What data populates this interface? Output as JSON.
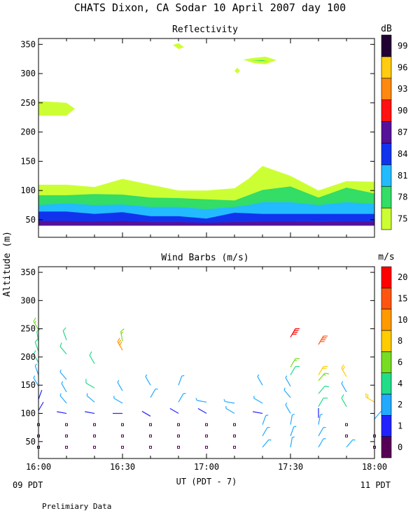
{
  "title": "CHATS Dixon, CA  Sodar  10 April 2007  day 100",
  "footer_note": "Prelimiary Data",
  "shared_y_label": "Altitude (m)",
  "x_axis": {
    "label": "UT  (PDT - 7)",
    "start_note": "09 PDT",
    "end_note": "11 PDT",
    "ticks": [
      {
        "label": "16:00",
        "value": 0
      },
      {
        "label": "16:30",
        "value": 30
      },
      {
        "label": "17:00",
        "value": 60
      },
      {
        "label": "17:30",
        "value": 90
      },
      {
        "label": "18:00",
        "value": 120
      }
    ]
  },
  "chart_data": [
    {
      "type": "area",
      "title": "Reflectivity",
      "ylabel": "Altitude (m)",
      "xlabel": "",
      "ylim": [
        20,
        360
      ],
      "yticks": [
        50,
        100,
        150,
        200,
        250,
        300,
        350
      ],
      "x": [
        0,
        10,
        20,
        30,
        40,
        50,
        60,
        70,
        75,
        80,
        90,
        100,
        110,
        120
      ],
      "colorbar": {
        "unit": "dB",
        "levels": [
          75,
          78,
          81,
          84,
          87,
          90,
          93,
          96,
          99
        ],
        "colors": [
          "#ccff33",
          "#33dd66",
          "#22bbff",
          "#1133ee",
          "#551199",
          "#ff1111",
          "#ff8811",
          "#ffcc11",
          "#220033"
        ]
      },
      "series": [
        {
          "level": 75,
          "values": [
            110,
            110,
            106,
            120,
            110,
            100,
            100,
            104,
            120,
            142,
            125,
            100,
            116,
            115
          ]
        },
        {
          "level": 78,
          "values": [
            92,
            92,
            94,
            93,
            88,
            87,
            85,
            83,
            92,
            101,
            107,
            88,
            105,
            95
          ]
        },
        {
          "level": 81,
          "values": [
            75,
            78,
            75,
            76,
            72,
            72,
            68,
            72,
            75,
            80,
            80,
            75,
            80,
            77
          ]
        },
        {
          "level": 84,
          "values": [
            64,
            64,
            60,
            63,
            56,
            56,
            52,
            62,
            61,
            60,
            60,
            60,
            60,
            60
          ]
        },
        {
          "level": 87,
          "values": [
            48,
            48,
            47,
            48,
            46,
            46,
            45,
            46,
            46,
            47,
            47,
            46,
            47,
            47
          ]
        }
      ],
      "annotations": [
        {
          "x": [
            0,
            10,
            13,
            10,
            0
          ],
          "y": [
            253,
            250,
            240,
            228,
            228
          ]
        },
        {
          "x": [
            48,
            50,
            52,
            50
          ],
          "y": [
            349,
            352,
            345,
            342
          ]
        },
        {
          "x": [
            70,
            71,
            72,
            71
          ],
          "y": [
            305,
            310,
            305,
            300
          ]
        },
        {
          "x": [
            73,
            77,
            81,
            85,
            81,
            77
          ],
          "y": [
            324,
            327,
            329,
            323,
            316,
            318
          ]
        }
      ]
    },
    {
      "type": "scatter",
      "title": "Wind Barbs (m/s)",
      "ylabel": "Altitude (m)",
      "xlabel": "UT  (PDT - 7)",
      "ylim": [
        20,
        360
      ],
      "yticks": [
        50,
        100,
        150,
        200,
        250,
        300,
        350
      ],
      "colorbar": {
        "unit": "m/s",
        "levels": [
          0,
          1,
          2,
          4,
          6,
          8,
          10,
          15,
          20
        ],
        "colors": [
          "#550055",
          "#2222ff",
          "#22aaff",
          "#22dd88",
          "#77dd22",
          "#ffcc00",
          "#ff9900",
          "#ff5511",
          "#ff0000"
        ]
      },
      "points": [
        {
          "x": 0,
          "y": 40,
          "speed": 0,
          "dir": 0
        },
        {
          "x": 0,
          "y": 60,
          "speed": 0,
          "dir": 0
        },
        {
          "x": 0,
          "y": 80,
          "speed": 0,
          "dir": 0
        },
        {
          "x": 0,
          "y": 105,
          "speed": 1,
          "dir": 30
        },
        {
          "x": 0,
          "y": 125,
          "speed": 1,
          "dir": 20
        },
        {
          "x": 0,
          "y": 148,
          "speed": 2,
          "dir": 330
        },
        {
          "x": 0,
          "y": 168,
          "speed": 3,
          "dir": 340
        },
        {
          "x": 0,
          "y": 190,
          "speed": 4,
          "dir": 330
        },
        {
          "x": 0,
          "y": 210,
          "speed": 4,
          "dir": 340
        },
        {
          "x": 0,
          "y": 228,
          "speed": 5,
          "dir": 350
        },
        {
          "x": 0,
          "y": 248,
          "speed": 6,
          "dir": 330
        },
        {
          "x": 10,
          "y": 40,
          "speed": 0,
          "dir": 0
        },
        {
          "x": 10,
          "y": 60,
          "speed": 0,
          "dir": 0
        },
        {
          "x": 10,
          "y": 80,
          "speed": 0,
          "dir": 0
        },
        {
          "x": 10,
          "y": 100,
          "speed": 1,
          "dir": 280
        },
        {
          "x": 10,
          "y": 118,
          "speed": 2,
          "dir": 320
        },
        {
          "x": 10,
          "y": 138,
          "speed": 3,
          "dir": 330
        },
        {
          "x": 10,
          "y": 160,
          "speed": 3,
          "dir": 320
        },
        {
          "x": 10,
          "y": 205,
          "speed": 5,
          "dir": 320
        },
        {
          "x": 10,
          "y": 230,
          "speed": 5,
          "dir": 340
        },
        {
          "x": 20,
          "y": 40,
          "speed": 0,
          "dir": 0
        },
        {
          "x": 20,
          "y": 60,
          "speed": 0,
          "dir": 0
        },
        {
          "x": 20,
          "y": 80,
          "speed": 0,
          "dir": 0
        },
        {
          "x": 20,
          "y": 100,
          "speed": 1,
          "dir": 280
        },
        {
          "x": 20,
          "y": 120,
          "speed": 3,
          "dir": 310
        },
        {
          "x": 20,
          "y": 145,
          "speed": 4,
          "dir": 300
        },
        {
          "x": 20,
          "y": 188,
          "speed": 5,
          "dir": 330
        },
        {
          "x": 30,
          "y": 40,
          "speed": 0,
          "dir": 0
        },
        {
          "x": 30,
          "y": 60,
          "speed": 0,
          "dir": 0
        },
        {
          "x": 30,
          "y": 80,
          "speed": 0,
          "dir": 0
        },
        {
          "x": 30,
          "y": 100,
          "speed": 1,
          "dir": 270
        },
        {
          "x": 30,
          "y": 118,
          "speed": 2,
          "dir": 300
        },
        {
          "x": 30,
          "y": 140,
          "speed": 2,
          "dir": 330
        },
        {
          "x": 30,
          "y": 212,
          "speed": 12,
          "dir": 330
        },
        {
          "x": 30,
          "y": 228,
          "speed": 7,
          "dir": 350
        },
        {
          "x": 40,
          "y": 40,
          "speed": 0,
          "dir": 0
        },
        {
          "x": 40,
          "y": 60,
          "speed": 0,
          "dir": 0
        },
        {
          "x": 40,
          "y": 80,
          "speed": 0,
          "dir": 0
        },
        {
          "x": 40,
          "y": 95,
          "speed": 1,
          "dir": 300
        },
        {
          "x": 40,
          "y": 128,
          "speed": 2,
          "dir": 30
        },
        {
          "x": 40,
          "y": 150,
          "speed": 3,
          "dir": 330
        },
        {
          "x": 50,
          "y": 40,
          "speed": 0,
          "dir": 0
        },
        {
          "x": 50,
          "y": 60,
          "speed": 0,
          "dir": 0
        },
        {
          "x": 50,
          "y": 80,
          "speed": 0,
          "dir": 0
        },
        {
          "x": 50,
          "y": 100,
          "speed": 1,
          "dir": 300
        },
        {
          "x": 50,
          "y": 120,
          "speed": 2,
          "dir": 30
        },
        {
          "x": 50,
          "y": 150,
          "speed": 3,
          "dir": 20
        },
        {
          "x": 60,
          "y": 40,
          "speed": 0,
          "dir": 0
        },
        {
          "x": 60,
          "y": 60,
          "speed": 0,
          "dir": 0
        },
        {
          "x": 60,
          "y": 80,
          "speed": 0,
          "dir": 0
        },
        {
          "x": 60,
          "y": 100,
          "speed": 1,
          "dir": 300
        },
        {
          "x": 60,
          "y": 120,
          "speed": 2,
          "dir": 280
        },
        {
          "x": 70,
          "y": 40,
          "speed": 0,
          "dir": 0
        },
        {
          "x": 70,
          "y": 60,
          "speed": 0,
          "dir": 0
        },
        {
          "x": 70,
          "y": 80,
          "speed": 0,
          "dir": 0
        },
        {
          "x": 70,
          "y": 100,
          "speed": 2,
          "dir": 300
        },
        {
          "x": 70,
          "y": 118,
          "speed": 3,
          "dir": 280
        },
        {
          "x": 80,
          "y": 40,
          "speed": 2,
          "dir": 40
        },
        {
          "x": 80,
          "y": 60,
          "speed": 2,
          "dir": 30
        },
        {
          "x": 80,
          "y": 80,
          "speed": 2,
          "dir": 20
        },
        {
          "x": 80,
          "y": 100,
          "speed": 1,
          "dir": 280
        },
        {
          "x": 80,
          "y": 118,
          "speed": 2,
          "dir": 300
        },
        {
          "x": 80,
          "y": 150,
          "speed": 3,
          "dir": 330
        },
        {
          "x": 90,
          "y": 40,
          "speed": 2,
          "dir": 10
        },
        {
          "x": 90,
          "y": 60,
          "speed": 2,
          "dir": 20
        },
        {
          "x": 90,
          "y": 80,
          "speed": 2,
          "dir": 10
        },
        {
          "x": 90,
          "y": 100,
          "speed": 2,
          "dir": 330
        },
        {
          "x": 90,
          "y": 128,
          "speed": 3,
          "dir": 320
        },
        {
          "x": 90,
          "y": 148,
          "speed": 3,
          "dir": 330
        },
        {
          "x": 90,
          "y": 168,
          "speed": 5,
          "dir": 30
        },
        {
          "x": 90,
          "y": 182,
          "speed": 7,
          "dir": 30
        },
        {
          "x": 90,
          "y": 235,
          "speed": 20,
          "dir": 30
        },
        {
          "x": 100,
          "y": 40,
          "speed": 2,
          "dir": 30
        },
        {
          "x": 100,
          "y": 60,
          "speed": 2,
          "dir": 30
        },
        {
          "x": 100,
          "y": 80,
          "speed": 2,
          "dir": 10
        },
        {
          "x": 100,
          "y": 92,
          "speed": 1,
          "dir": 0
        },
        {
          "x": 100,
          "y": 112,
          "speed": 4,
          "dir": 30
        },
        {
          "x": 100,
          "y": 135,
          "speed": 4,
          "dir": 40
        },
        {
          "x": 100,
          "y": 158,
          "speed": 6,
          "dir": 40
        },
        {
          "x": 100,
          "y": 168,
          "speed": 9,
          "dir": 30
        },
        {
          "x": 100,
          "y": 222,
          "speed": 17,
          "dir": 30
        },
        {
          "x": 110,
          "y": 40,
          "speed": 2,
          "dir": 40
        },
        {
          "x": 110,
          "y": 60,
          "speed": 0,
          "dir": 0
        },
        {
          "x": 110,
          "y": 80,
          "speed": 0,
          "dir": 0
        },
        {
          "x": 110,
          "y": 112,
          "speed": 5,
          "dir": 330
        },
        {
          "x": 110,
          "y": 138,
          "speed": 3,
          "dir": 330
        },
        {
          "x": 110,
          "y": 165,
          "speed": 8,
          "dir": 330
        },
        {
          "x": 120,
          "y": 40,
          "speed": 0,
          "dir": 0
        },
        {
          "x": 120,
          "y": 60,
          "speed": 0,
          "dir": 0
        },
        {
          "x": 120,
          "y": 90,
          "speed": 2,
          "dir": 40
        },
        {
          "x": 120,
          "y": 120,
          "speed": 9,
          "dir": 300
        }
      ]
    }
  ]
}
